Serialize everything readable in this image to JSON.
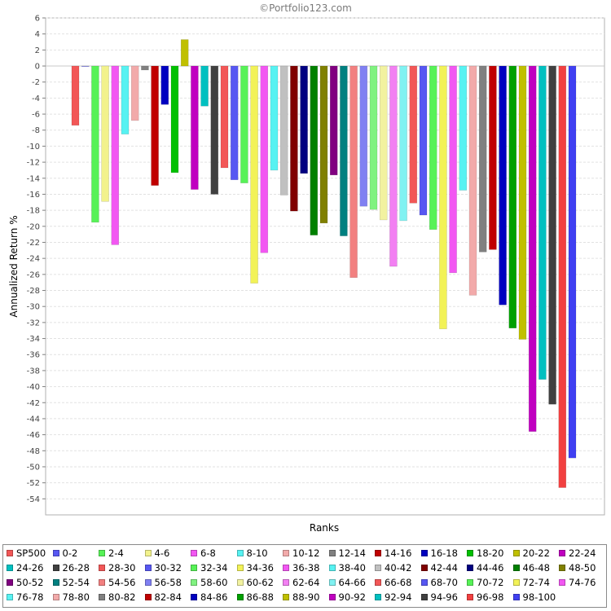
{
  "watermark": "©Portfolio123.com",
  "chart_data": {
    "type": "bar",
    "title": "",
    "xlabel": "Ranks",
    "ylabel": "Annualized Return %",
    "ylim": [
      -56,
      6
    ],
    "ytick_step": 2,
    "grid": true,
    "legend_position": "bottom",
    "series": [
      {
        "name": "SP500",
        "value": -7.4,
        "color": "#f25757"
      },
      {
        "name": "0-2",
        "value": 0.0,
        "color": "#5757f2"
      },
      {
        "name": "2-4",
        "value": -19.5,
        "color": "#57f257"
      },
      {
        "name": "4-6",
        "value": -16.9,
        "color": "#f2f28c"
      },
      {
        "name": "6-8",
        "value": -22.3,
        "color": "#f257f2"
      },
      {
        "name": "8-10",
        "value": -8.5,
        "color": "#57f2f2"
      },
      {
        "name": "10-12",
        "value": -6.8,
        "color": "#f2aaaa"
      },
      {
        "name": "12-14",
        "value": -0.5,
        "color": "#808080"
      },
      {
        "name": "14-16",
        "value": -14.9,
        "color": "#c00000"
      },
      {
        "name": "16-18",
        "value": -4.8,
        "color": "#0000c0"
      },
      {
        "name": "18-20",
        "value": -13.3,
        "color": "#00c000"
      },
      {
        "name": "20-22",
        "value": 3.3,
        "color": "#c0c000"
      },
      {
        "name": "22-24",
        "value": -15.4,
        "color": "#c000c0"
      },
      {
        "name": "24-26",
        "value": -5.0,
        "color": "#00c0c0"
      },
      {
        "name": "26-28",
        "value": -16.0,
        "color": "#404040"
      },
      {
        "name": "28-30",
        "value": -12.7,
        "color": "#f25757"
      },
      {
        "name": "30-32",
        "value": -14.2,
        "color": "#5757f2"
      },
      {
        "name": "32-34",
        "value": -14.6,
        "color": "#57f257"
      },
      {
        "name": "34-36",
        "value": -27.1,
        "color": "#f2f257"
      },
      {
        "name": "36-38",
        "value": -23.3,
        "color": "#f257f2"
      },
      {
        "name": "38-40",
        "value": -13.0,
        "color": "#57f2f2"
      },
      {
        "name": "40-42",
        "value": -16.1,
        "color": "#c0c0c0"
      },
      {
        "name": "42-44",
        "value": -18.1,
        "color": "#800000"
      },
      {
        "name": "44-46",
        "value": -13.4,
        "color": "#000080"
      },
      {
        "name": "46-48",
        "value": -21.1,
        "color": "#008000"
      },
      {
        "name": "48-50",
        "value": -19.6,
        "color": "#808000"
      },
      {
        "name": "50-52",
        "value": -13.6,
        "color": "#800080"
      },
      {
        "name": "52-54",
        "value": -21.2,
        "color": "#008080"
      },
      {
        "name": "54-56",
        "value": -26.4,
        "color": "#f28080"
      },
      {
        "name": "56-58",
        "value": -17.5,
        "color": "#8080f2"
      },
      {
        "name": "58-60",
        "value": -17.9,
        "color": "#80f280"
      },
      {
        "name": "60-62",
        "value": -19.2,
        "color": "#f2f2a0"
      },
      {
        "name": "62-64",
        "value": -25.0,
        "color": "#f280f2"
      },
      {
        "name": "64-66",
        "value": -19.3,
        "color": "#80f2f2"
      },
      {
        "name": "66-68",
        "value": -17.1,
        "color": "#f25757"
      },
      {
        "name": "68-70",
        "value": -18.6,
        "color": "#5757f2"
      },
      {
        "name": "70-72",
        "value": -20.4,
        "color": "#57f257"
      },
      {
        "name": "72-74",
        "value": -32.8,
        "color": "#f2f257"
      },
      {
        "name": "74-76",
        "value": -25.8,
        "color": "#f257f2"
      },
      {
        "name": "76-78",
        "value": -15.5,
        "color": "#57f2f2"
      },
      {
        "name": "78-80",
        "value": -28.6,
        "color": "#f2aaaa"
      },
      {
        "name": "80-82",
        "value": -23.2,
        "color": "#808080"
      },
      {
        "name": "82-84",
        "value": -22.9,
        "color": "#c00000"
      },
      {
        "name": "84-86",
        "value": -29.8,
        "color": "#0000c0"
      },
      {
        "name": "86-88",
        "value": -32.7,
        "color": "#00a000"
      },
      {
        "name": "88-90",
        "value": -34.1,
        "color": "#c0c000"
      },
      {
        "name": "90-92",
        "value": -45.6,
        "color": "#c000c0"
      },
      {
        "name": "92-94",
        "value": -39.1,
        "color": "#00c0c0"
      },
      {
        "name": "94-96",
        "value": -42.2,
        "color": "#404040"
      },
      {
        "name": "96-98",
        "value": -52.6,
        "color": "#f24040"
      },
      {
        "name": "98-100",
        "value": -48.9,
        "color": "#4040f2"
      }
    ]
  }
}
